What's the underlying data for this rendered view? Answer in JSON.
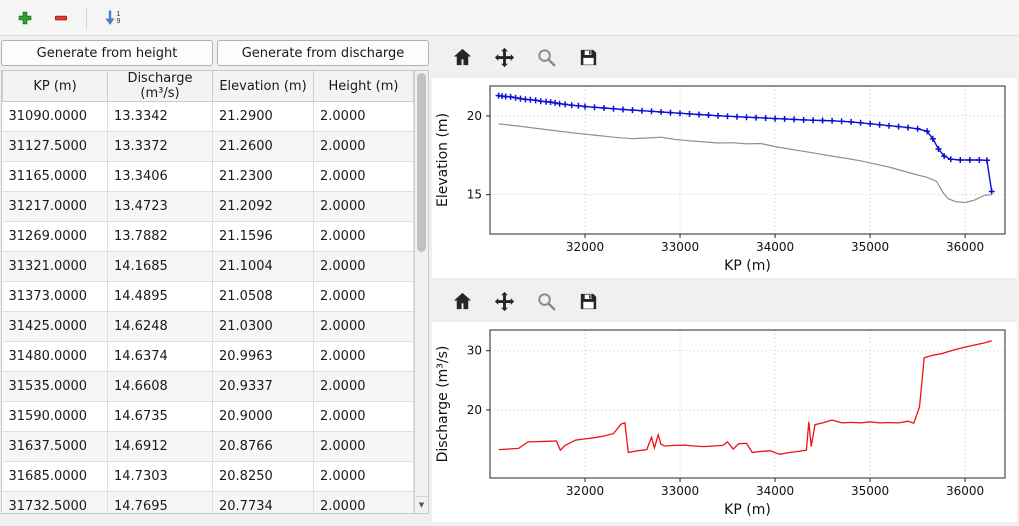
{
  "main_toolbar": {
    "sort_top_digit": "1",
    "sort_bottom_digit": "9"
  },
  "left_panel": {
    "generate_from_height_label": "Generate from height",
    "generate_from_discharge_label": "Generate from discharge",
    "table": {
      "columns": [
        "KP (m)",
        "Discharge (m³/s)",
        "Elevation (m)",
        "Height (m)"
      ],
      "rows": [
        [
          "31090.0000",
          "13.3342",
          "21.2900",
          "2.0000"
        ],
        [
          "31127.5000",
          "13.3372",
          "21.2600",
          "2.0000"
        ],
        [
          "31165.0000",
          "13.3406",
          "21.2300",
          "2.0000"
        ],
        [
          "31217.0000",
          "13.4723",
          "21.2092",
          "2.0000"
        ],
        [
          "31269.0000",
          "13.7882",
          "21.1596",
          "2.0000"
        ],
        [
          "31321.0000",
          "14.1685",
          "21.1004",
          "2.0000"
        ],
        [
          "31373.0000",
          "14.4895",
          "21.0508",
          "2.0000"
        ],
        [
          "31425.0000",
          "14.6248",
          "21.0300",
          "2.0000"
        ],
        [
          "31480.0000",
          "14.6374",
          "20.9963",
          "2.0000"
        ],
        [
          "31535.0000",
          "14.6608",
          "20.9337",
          "2.0000"
        ],
        [
          "31590.0000",
          "14.6735",
          "20.9000",
          "2.0000"
        ],
        [
          "31637.5000",
          "14.6912",
          "20.8766",
          "2.0000"
        ],
        [
          "31685.0000",
          "14.7303",
          "20.8250",
          "2.0000"
        ],
        [
          "31732.5000",
          "14.7695",
          "20.7734",
          "2.0000"
        ]
      ]
    },
    "scrollbar_down_glyph": "▼"
  },
  "chart_data": [
    {
      "type": "line",
      "title": "",
      "xlabel": "KP (m)",
      "ylabel": "Elevation (m)",
      "xlim": [
        31000,
        36420
      ],
      "ylim": [
        12.5,
        21.9
      ],
      "xticks": [
        32000,
        33000,
        34000,
        35000,
        36000
      ],
      "yticks": [
        15,
        20
      ],
      "grid": true,
      "legend": false,
      "series": [
        {
          "name": "blue-marker-profile",
          "color": "#0d0dd6",
          "marker": "+",
          "width": 1.4,
          "x": [
            31090,
            31127.5,
            31165,
            31217,
            31269,
            31321,
            31373,
            31425,
            31480,
            31535,
            31590,
            31637.5,
            31685,
            31732.5,
            31790,
            31860,
            31930,
            32000,
            32100,
            32200,
            32300,
            32400,
            32500,
            32600,
            32700,
            32800,
            32900,
            33000,
            33100,
            33200,
            33300,
            33400,
            33500,
            33600,
            33700,
            33800,
            33900,
            34000,
            34100,
            34200,
            34300,
            34400,
            34500,
            34600,
            34700,
            34800,
            34900,
            35000,
            35100,
            35200,
            35300,
            35400,
            35500,
            35600,
            35660,
            35720,
            35780,
            35850,
            35950,
            36050,
            36150,
            36230,
            36280
          ],
          "y": [
            21.29,
            21.26,
            21.23,
            21.2092,
            21.1596,
            21.1004,
            21.0508,
            21.03,
            20.9963,
            20.9337,
            20.9,
            20.8766,
            20.825,
            20.7734,
            20.73,
            20.68,
            20.64,
            20.6,
            20.55,
            20.5,
            20.46,
            20.41,
            20.37,
            20.33,
            20.29,
            20.25,
            20.21,
            20.17,
            20.13,
            20.09,
            20.05,
            20.01,
            19.98,
            19.95,
            19.92,
            19.89,
            19.86,
            19.83,
            19.81,
            19.78,
            19.75,
            19.73,
            19.71,
            19.69,
            19.66,
            19.62,
            19.56,
            19.5,
            19.44,
            19.38,
            19.32,
            19.26,
            19.18,
            19.02,
            18.55,
            17.9,
            17.45,
            17.25,
            17.2,
            17.2,
            17.2,
            17.18,
            15.2
          ]
        },
        {
          "name": "gray-line-profile",
          "color": "#909090",
          "marker": null,
          "width": 1.2,
          "x": [
            31090,
            31300,
            31500,
            31700,
            31900,
            32100,
            32300,
            32500,
            32650,
            32800,
            32950,
            33100,
            33250,
            33400,
            33550,
            33700,
            33850,
            34000,
            34150,
            34300,
            34450,
            34600,
            34750,
            34900,
            35050,
            35200,
            35350,
            35500,
            35600,
            35700,
            35760,
            35820,
            35900,
            36000,
            36100,
            36200,
            36280
          ],
          "y": [
            19.5,
            19.35,
            19.2,
            19.05,
            18.9,
            18.78,
            18.65,
            18.55,
            18.6,
            18.65,
            18.5,
            18.42,
            18.35,
            18.28,
            18.3,
            18.22,
            18.25,
            18.05,
            17.9,
            17.75,
            17.6,
            17.45,
            17.3,
            17.15,
            16.95,
            16.75,
            16.5,
            16.25,
            16.1,
            15.85,
            15.2,
            14.75,
            14.55,
            14.5,
            14.65,
            14.95,
            15.0
          ]
        }
      ]
    },
    {
      "type": "line",
      "title": "",
      "xlabel": "KP (m)",
      "ylabel": "Discharge (m³/s)",
      "xlim": [
        31000,
        36420
      ],
      "ylim": [
        8.5,
        33.5
      ],
      "xticks": [
        32000,
        33000,
        34000,
        35000,
        36000
      ],
      "yticks": [
        20,
        30
      ],
      "grid": true,
      "legend": false,
      "series": [
        {
          "name": "red-discharge-line",
          "color": "#ee1111",
          "marker": null,
          "width": 1.3,
          "x": [
            31090,
            31200,
            31300,
            31400,
            31500,
            31600,
            31700,
            31740,
            31790,
            31900,
            32000,
            32100,
            32200,
            32300,
            32380,
            32420,
            32455,
            32550,
            32650,
            32700,
            32730,
            32770,
            32800,
            32840,
            32950,
            33050,
            33150,
            33250,
            33350,
            33450,
            33500,
            33560,
            33620,
            33700,
            33760,
            33850,
            33950,
            34050,
            34150,
            34250,
            34330,
            34355,
            34380,
            34420,
            34500,
            34600,
            34700,
            34800,
            34900,
            35000,
            35100,
            35200,
            35300,
            35400,
            35460,
            35520,
            35570,
            35650,
            35750,
            35900,
            36050,
            36200,
            36280
          ],
          "y": [
            13.3,
            13.4,
            13.5,
            14.6,
            14.65,
            14.7,
            14.75,
            13.2,
            14.0,
            14.9,
            15.1,
            15.3,
            15.6,
            16.0,
            17.6,
            17.8,
            12.8,
            13.1,
            13.3,
            15.4,
            13.6,
            15.8,
            14.2,
            13.9,
            14.0,
            14.05,
            13.9,
            13.8,
            13.9,
            14.0,
            14.6,
            13.4,
            14.3,
            14.35,
            12.8,
            13.0,
            13.1,
            12.5,
            12.8,
            13.0,
            13.2,
            18.0,
            13.8,
            17.5,
            17.8,
            18.3,
            17.8,
            17.9,
            17.8,
            18.0,
            17.8,
            17.85,
            17.8,
            18.1,
            17.75,
            20.5,
            28.8,
            29.2,
            29.5,
            30.2,
            30.8,
            31.3,
            31.7
          ]
        }
      ]
    }
  ]
}
